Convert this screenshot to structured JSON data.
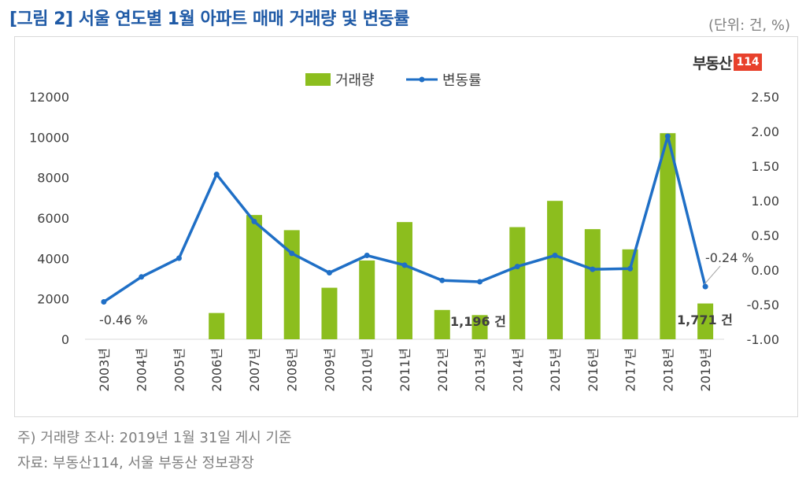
{
  "title": "[그림 2] 서울 연도별 1월 아파트 매매 거래량 및 변동률",
  "unit": "(단위: 건, %)",
  "logo": {
    "text": "부동산",
    "number": "114"
  },
  "notes": [
    "주) 거래량 조사: 2019년 1월 31일 게시 기준",
    "자료: 부동산114, 서울 부동산 정보광장"
  ],
  "chart_data": {
    "type": "bar+line",
    "categories": [
      "2003년",
      "2004년",
      "2005년",
      "2006년",
      "2007년",
      "2008년",
      "2009년",
      "2010년",
      "2011년",
      "2012년",
      "2013년",
      "2014년",
      "2015년",
      "2016년",
      "2017년",
      "2018년",
      "2019년"
    ],
    "series": [
      {
        "name": "거래량",
        "type": "bar",
        "axis": "left",
        "values": [
          null,
          null,
          null,
          1300,
          6150,
          5400,
          2550,
          3900,
          5800,
          1450,
          1196,
          5550,
          6850,
          5450,
          4450,
          10200,
          1771
        ]
      },
      {
        "name": "변동률",
        "type": "line",
        "axis": "right",
        "values": [
          -0.46,
          -0.1,
          0.17,
          1.38,
          0.7,
          0.24,
          -0.04,
          0.21,
          0.07,
          -0.15,
          -0.17,
          0.05,
          0.21,
          0.01,
          0.02,
          1.93,
          -0.24
        ]
      }
    ],
    "yleft": {
      "min": 0,
      "max": 12000,
      "ticks": [
        "0",
        "2000",
        "4000",
        "6000",
        "8000",
        "10000",
        "12000"
      ]
    },
    "yright": {
      "min": -1.0,
      "max": 2.5,
      "ticks": [
        "-1.00",
        "-0.50",
        "0.00",
        "0.50",
        "1.00",
        "1.50",
        "2.00",
        "2.50"
      ]
    },
    "legend": {
      "position": "top",
      "items": [
        "거래량",
        "변동률"
      ]
    },
    "annotations": [
      "-0.46 %",
      "1,196 건",
      "-0.24 %",
      "1,771 건"
    ],
    "colors": {
      "bar": "#8cbe1e",
      "line": "#1f6fc6"
    }
  }
}
